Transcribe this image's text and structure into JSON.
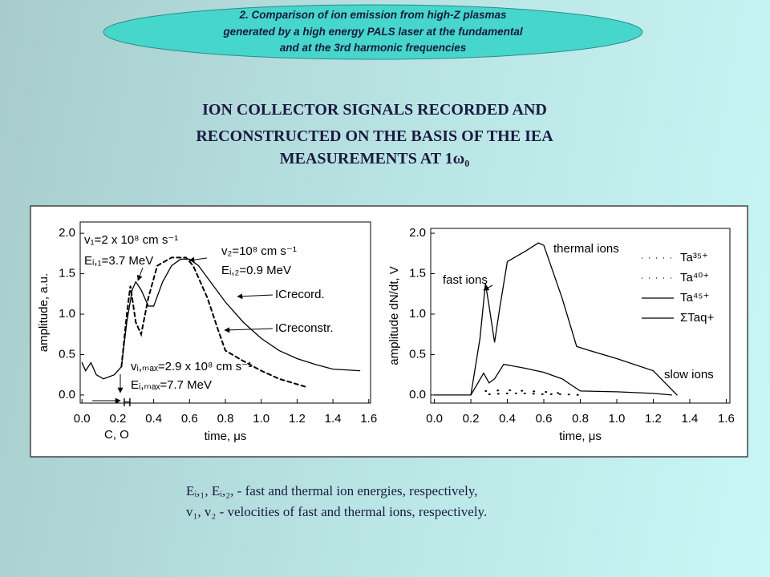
{
  "header": {
    "lines": [
      "2. Comparison of ion emission from high-Z plasmas",
      "generated by a high energy PALS laser at the fundamental",
      "and at the 3rd harmonic frequencies"
    ]
  },
  "title": {
    "lines": [
      "ION COLLECTOR SIGNALS RECORDED AND",
      "RECONSTRUCTED ON THE BASIS OF THE IEA",
      "MEASUREMENTS AT 1ω₀"
    ]
  },
  "chart_data": [
    {
      "type": "line",
      "xlabel": "time, μs",
      "ylabel": "amplitude, a.u.",
      "xlim": [
        -0.01,
        1.61
      ],
      "ylim": [
        -0.1,
        2.14
      ],
      "xticks": [
        {
          "value": 0,
          "label": "0.0"
        },
        0.2,
        0.4,
        0.6,
        0.8,
        {
          "value": 1,
          "label": "1.0"
        },
        1.2,
        1.4,
        1.6
      ],
      "yticks": [
        {
          "value": 0,
          "label": "0.0"
        },
        0.5,
        {
          "value": 1,
          "label": "1.0"
        },
        1.5,
        {
          "value": 2,
          "label": "2.0"
        }
      ],
      "annotations": [
        "v₁=2 x 10⁸ cm s⁻¹",
        "Eᵢ,₁=3.7 MeV",
        "v₂=10⁸ cm s⁻¹",
        "Eᵢ,₂=0.9 MeV",
        "vᵢ,ₘₐₓ=2.9 x 10⁸ cm s⁻¹",
        "Eᵢ,ₘₐₓ=7.7 MeV",
        "H",
        "C, O"
      ],
      "series": [
        {
          "name": "ICrecord.",
          "color": "#000000",
          "dash": "none",
          "x": [
            0.0,
            0.02,
            0.05,
            0.08,
            0.12,
            0.18,
            0.22,
            0.25,
            0.28,
            0.3,
            0.33,
            0.37,
            0.4,
            0.45,
            0.5,
            0.55,
            0.6,
            0.65,
            0.7,
            0.8,
            0.9,
            1.0,
            1.1,
            1.2,
            1.3,
            1.4,
            1.55
          ],
          "values": [
            0.4,
            0.3,
            0.4,
            0.25,
            0.2,
            0.25,
            0.35,
            0.9,
            1.3,
            1.4,
            1.3,
            1.1,
            1.1,
            1.4,
            1.6,
            1.68,
            1.68,
            1.6,
            1.45,
            1.15,
            0.9,
            0.7,
            0.55,
            0.45,
            0.38,
            0.32,
            0.3
          ]
        },
        {
          "name": "ICreconstr.",
          "color": "#000000",
          "dash": "5 4",
          "x": [
            0.22,
            0.25,
            0.27,
            0.3,
            0.33,
            0.37,
            0.42,
            0.5,
            0.58,
            0.62,
            0.7,
            0.76,
            0.8,
            0.9,
            1.0,
            1.1,
            1.25
          ],
          "values": [
            0.35,
            1.0,
            1.35,
            0.9,
            0.75,
            1.2,
            1.6,
            1.7,
            1.7,
            1.6,
            1.2,
            0.8,
            0.55,
            0.42,
            0.3,
            0.2,
            0.1
          ]
        }
      ]
    },
    {
      "type": "line",
      "xlabel": "time, μs",
      "ylabel": "amplitude dN/dt, V",
      "xlim": [
        -0.02,
        1.62
      ],
      "ylim": [
        -0.1,
        2.06
      ],
      "xticks": [
        {
          "value": 0,
          "label": "0.0"
        },
        0.2,
        0.4,
        0.6,
        0.8,
        {
          "value": 1,
          "label": "1.0"
        },
        1.2,
        1.4,
        1.6
      ],
      "yticks": [
        {
          "value": 0,
          "label": "0.0"
        },
        0.5,
        {
          "value": 1,
          "label": "1.0"
        },
        1.5,
        {
          "value": 2,
          "label": "2.0"
        }
      ],
      "annotations": [
        "thermal ions",
        "fast ions",
        "slow ions"
      ],
      "series": [
        {
          "name": "Ta³⁵⁺",
          "color": "#000000",
          "dash": "1 10",
          "x": [
            0.3,
            0.4,
            0.5,
            0.6,
            0.7,
            0.8
          ],
          "values": [
            0.01,
            0.02,
            0.02,
            0.01,
            0.01,
            0.0
          ]
        },
        {
          "name": "Ta⁴⁰⁺",
          "color": "#000000",
          "dash": "1 14",
          "x": [
            0.28,
            0.4,
            0.5,
            0.6,
            0.7
          ],
          "values": [
            0.05,
            0.06,
            0.05,
            0.04,
            0.02
          ]
        },
        {
          "name": "Ta⁴⁵⁺",
          "color": "#000000",
          "dash": "none",
          "x": [
            0.2,
            0.27,
            0.3,
            0.33,
            0.38,
            0.5,
            0.6,
            0.7,
            0.8,
            1.0,
            1.2,
            1.3
          ],
          "values": [
            0.0,
            0.27,
            0.15,
            0.2,
            0.38,
            0.33,
            0.28,
            0.2,
            0.05,
            0.04,
            0.02,
            0.0
          ]
        },
        {
          "name": "ΣTaq+",
          "color": "#000000",
          "dash": "none",
          "x": [
            0.0,
            0.2,
            0.25,
            0.28,
            0.3,
            0.33,
            0.36,
            0.4,
            0.5,
            0.57,
            0.6,
            0.7,
            0.78,
            0.85,
            1.0,
            1.2,
            1.33
          ],
          "values": [
            0.0,
            0.0,
            0.7,
            1.38,
            1.1,
            0.65,
            1.1,
            1.65,
            1.78,
            1.88,
            1.85,
            1.2,
            0.6,
            0.55,
            0.45,
            0.3,
            0.0
          ]
        }
      ]
    }
  ],
  "caption": {
    "lines": [
      "Eᵢ,₁, Eᵢ,₂, - fast and thermal ion energies, respectively,",
      "v₁, v₂ - velocities of fast and thermal ions, respectively."
    ]
  }
}
